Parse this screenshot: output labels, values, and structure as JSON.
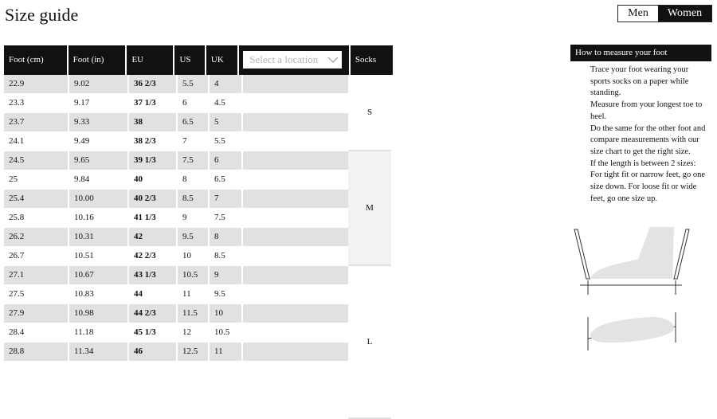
{
  "header": {
    "title": "Size guide",
    "toggle": [
      "Men",
      "Women"
    ]
  },
  "table": {
    "columns": [
      "Foot (cm)",
      "Foot (in)",
      "EU",
      "US",
      "UK"
    ],
    "location_placeholder": "Select a location",
    "socks_header": "Socks",
    "rows": [
      [
        "22.9",
        "9.02",
        "36 2/3",
        "5.5",
        "4"
      ],
      [
        "23.3",
        "9.17",
        "37 1/3",
        "6",
        "4.5"
      ],
      [
        "23.7",
        "9.33",
        "38",
        "6.5",
        "5"
      ],
      [
        "24.1",
        "9.49",
        "38 2/3",
        "7",
        "5.5"
      ],
      [
        "24.5",
        "9.65",
        "39 1/3",
        "7.5",
        "6"
      ],
      [
        "25",
        "9.84",
        "40",
        "8",
        "6.5"
      ],
      [
        "25.4",
        "10.00",
        "40 2/3",
        "8.5",
        "7"
      ],
      [
        "25.8",
        "10.16",
        "41 1/3",
        "9",
        "7.5"
      ],
      [
        "26.2",
        "10.31",
        "42",
        "9.5",
        "8"
      ],
      [
        "26.7",
        "10.51",
        "42 2/3",
        "10",
        "8.5"
      ],
      [
        "27.1",
        "10.67",
        "43 1/3",
        "10.5",
        "9"
      ],
      [
        "27.5",
        "10.83",
        "44",
        "11",
        "9.5"
      ],
      [
        "27.9",
        "10.98",
        "44 2/3",
        "11.5",
        "10"
      ],
      [
        "28.4",
        "11.18",
        "45 1/3",
        "12",
        "10.5"
      ],
      [
        "28.8",
        "11.34",
        "46",
        "12.5",
        "11"
      ]
    ],
    "socks": [
      "S",
      "M",
      "L"
    ]
  },
  "guide": {
    "title": "How to measure your foot",
    "steps": [
      "Trace your foot wearing your sports socks on a paper while standing.",
      "Measure from your longest toe to heel.",
      "Do the same for the other foot and compare measurements with our size chart to get the right size.",
      "If the length is between 2 sizes: For tight fit or narrow feet, go one size down. For loose fit or wide feet, go one size up."
    ]
  }
}
